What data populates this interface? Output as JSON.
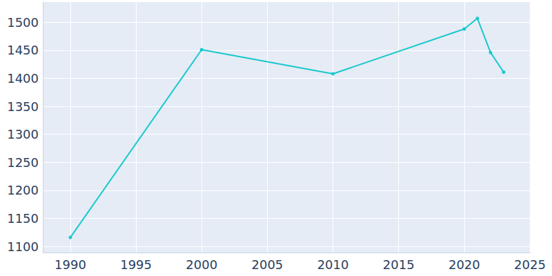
{
  "chart_data": {
    "type": "line",
    "x": [
      1990,
      2000,
      2010,
      2020,
      2021,
      2022,
      2023
    ],
    "values": [
      1116,
      1451,
      1408,
      1488,
      1507,
      1446,
      1411
    ],
    "color": "#17c9cc",
    "marker": "circle",
    "xlim": [
      1987.9,
      2025.0
    ],
    "xticks": [
      1990,
      1995,
      2000,
      2005,
      2010,
      2015,
      2020,
      2025
    ],
    "ylim": [
      1089,
      1536
    ],
    "yticks": [
      1100,
      1150,
      1200,
      1250,
      1300,
      1350,
      1400,
      1450,
      1500
    ],
    "grid": true
  }
}
